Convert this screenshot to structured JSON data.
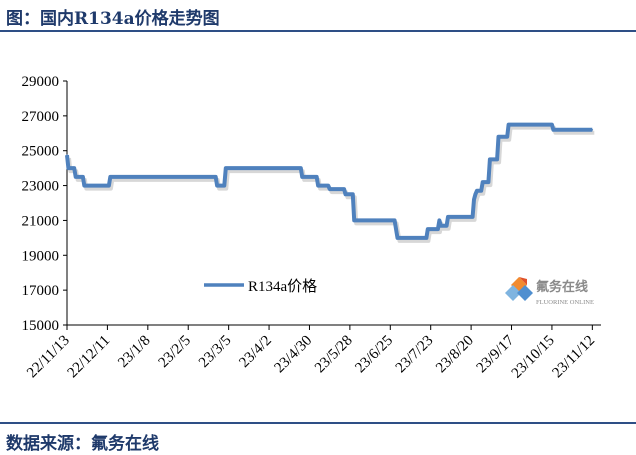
{
  "header": {
    "title": "图：国内R134a价格走势图"
  },
  "footer": {
    "source": "数据来源：氟务在线"
  },
  "watermark": {
    "name": "氟务在线",
    "sub": "FLUORINE ONLINE"
  },
  "chart_data": {
    "type": "line",
    "title": "图：国内R134a价格走势图",
    "xlabel": "",
    "ylabel": "",
    "ylim": [
      15000,
      29000
    ],
    "yticks": [
      15000,
      17000,
      19000,
      21000,
      23000,
      25000,
      27000,
      29000
    ],
    "xlim": [
      "2022-11-13",
      "2023-11-18"
    ],
    "xticks": [
      "22/11/13",
      "22/12/11",
      "23/1/8",
      "23/2/5",
      "23/3/5",
      "23/4/2",
      "23/4/30",
      "23/5/28",
      "23/6/25",
      "23/7/23",
      "23/8/20",
      "23/9/17",
      "23/10/15",
      "23/11/12"
    ],
    "grid": false,
    "legend": "center",
    "colors": {
      "series": "#4f81bd",
      "axis": "#000000"
    },
    "series": [
      {
        "name": "R134a价格",
        "points": [
          [
            "2022-11-13",
            24750
          ],
          [
            "2022-11-14",
            24000
          ],
          [
            "2022-11-18",
            24000
          ],
          [
            "2022-11-19",
            23500
          ],
          [
            "2022-11-24",
            23500
          ],
          [
            "2022-11-25",
            23000
          ],
          [
            "2022-12-12",
            23000
          ],
          [
            "2022-12-13",
            23500
          ],
          [
            "2023-02-24",
            23500
          ],
          [
            "2023-02-25",
            23000
          ],
          [
            "2023-03-02",
            23000
          ],
          [
            "2023-03-03",
            24000
          ],
          [
            "2023-04-24",
            24000
          ],
          [
            "2023-04-25",
            23500
          ],
          [
            "2023-05-05",
            23500
          ],
          [
            "2023-05-06",
            23000
          ],
          [
            "2023-05-13",
            23000
          ],
          [
            "2023-05-14",
            22800
          ],
          [
            "2023-05-24",
            22800
          ],
          [
            "2023-05-25",
            22500
          ],
          [
            "2023-05-30",
            22500
          ],
          [
            "2023-05-31",
            21000
          ],
          [
            "2023-06-28",
            21000
          ],
          [
            "2023-06-30",
            20000
          ],
          [
            "2023-07-20",
            20000
          ],
          [
            "2023-07-21",
            20500
          ],
          [
            "2023-07-28",
            20500
          ],
          [
            "2023-07-29",
            21000
          ],
          [
            "2023-07-30",
            20700
          ],
          [
            "2023-08-03",
            20700
          ],
          [
            "2023-08-04",
            21200
          ],
          [
            "2023-08-21",
            21200
          ],
          [
            "2023-08-22",
            22200
          ],
          [
            "2023-08-23",
            22500
          ],
          [
            "2023-08-24",
            22700
          ],
          [
            "2023-08-27",
            22700
          ],
          [
            "2023-08-28",
            23200
          ],
          [
            "2023-09-01",
            23200
          ],
          [
            "2023-09-02",
            24500
          ],
          [
            "2023-09-07",
            24500
          ],
          [
            "2023-09-08",
            25800
          ],
          [
            "2023-09-14",
            25800
          ],
          [
            "2023-09-15",
            26500
          ],
          [
            "2023-10-15",
            26500
          ],
          [
            "2023-10-16",
            26200
          ],
          [
            "2023-11-12",
            26200
          ]
        ]
      }
    ]
  }
}
